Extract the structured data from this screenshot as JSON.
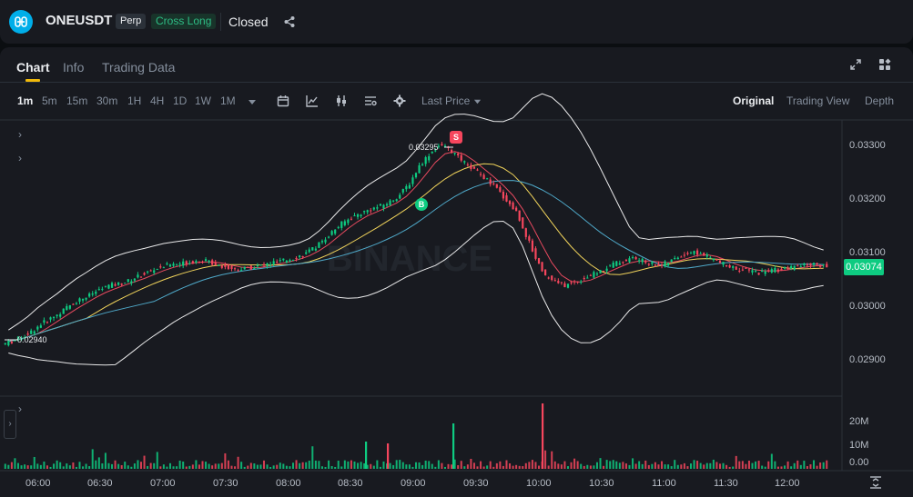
{
  "header": {
    "symbol": "ONEUSDT",
    "contract_type": "Perp",
    "margin_mode": "Cross Long",
    "status": "Closed",
    "icons": {
      "logo": "one-logo-icon",
      "share": "share-icon"
    }
  },
  "tabs": [
    {
      "label": "Chart",
      "active": true
    },
    {
      "label": "Info",
      "active": false
    },
    {
      "label": "Trading Data",
      "active": false
    }
  ],
  "toolbar": {
    "timeframes": [
      {
        "label": "1m",
        "active": true
      },
      {
        "label": "5m",
        "active": false
      },
      {
        "label": "15m",
        "active": false
      },
      {
        "label": "30m",
        "active": false
      },
      {
        "label": "1H",
        "active": false
      },
      {
        "label": "4H",
        "active": false
      },
      {
        "label": "1D",
        "active": false
      },
      {
        "label": "1W",
        "active": false
      },
      {
        "label": "1M",
        "active": false
      }
    ],
    "price_type": "Last Price",
    "views": [
      {
        "label": "Original",
        "active": true
      },
      {
        "label": "Trading View",
        "active": false
      },
      {
        "label": "Depth",
        "active": false
      }
    ]
  },
  "chart_data": {
    "type": "candlestick",
    "watermark": "BINANCE",
    "current_price": "0.03074",
    "current_price_color": "#0ecb81",
    "high_annotation": "0.03295",
    "low_annotation": "0.02940",
    "buy_marker": "B",
    "sell_marker": "S",
    "price_axis_ticks": [
      "0.03300",
      "0.03200",
      "0.03100",
      "0.03000",
      "0.02900"
    ],
    "price_range": [
      0.0285,
      0.0333
    ],
    "volume_axis_ticks": [
      "20M",
      "10M",
      "0.00"
    ],
    "time_axis_ticks": [
      "06:00",
      "06:30",
      "07:00",
      "07:30",
      "08:00",
      "08:30",
      "09:00",
      "09:30",
      "10:00",
      "10:30",
      "11:00",
      "11:30",
      "12:00"
    ],
    "colors": {
      "up": "#0ecb81",
      "down": "#f6465d",
      "ma_fast": "#e84a5f",
      "ma_mid": "#f0d35b",
      "ma_slow": "#4fa9c9",
      "bands": "#ffffff"
    },
    "close_series": [
      0.02945,
      0.02952,
      0.02962,
      0.02975,
      0.02985,
      0.02995,
      0.03008,
      0.03018,
      0.03025,
      0.03035,
      0.03042,
      0.03045,
      0.0305,
      0.03058,
      0.03065,
      0.03072,
      0.03078,
      0.0308,
      0.03082,
      0.03085,
      0.03085,
      0.0308,
      0.03075,
      0.0307,
      0.03072,
      0.03075,
      0.03078,
      0.03082,
      0.03085,
      0.0309,
      0.03095,
      0.03105,
      0.0312,
      0.03135,
      0.0315,
      0.0316,
      0.03168,
      0.03175,
      0.0318,
      0.03188,
      0.032,
      0.0322,
      0.0325,
      0.0327,
      0.03285,
      0.0328,
      0.03265,
      0.0325,
      0.0324,
      0.03225,
      0.0321,
      0.0319,
      0.0317,
      0.0313,
      0.0309,
      0.0306,
      0.03048,
      0.03042,
      0.03048,
      0.03055,
      0.03062,
      0.0307,
      0.0308,
      0.03085,
      0.0309,
      0.03085,
      0.0308,
      0.03078,
      0.03085,
      0.03095,
      0.031,
      0.03098,
      0.0309,
      0.03082,
      0.03075,
      0.0307,
      0.03068,
      0.03065,
      0.03068,
      0.0307,
      0.03072,
      0.03075,
      0.03078,
      0.0308,
      0.03074
    ]
  }
}
